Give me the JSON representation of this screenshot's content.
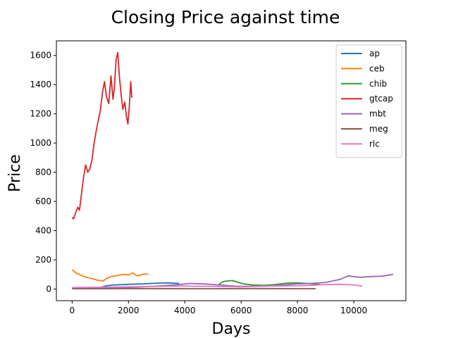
{
  "chart_data": {
    "type": "line",
    "title": "Closing Price against time",
    "xlabel": "Days",
    "ylabel": "Price",
    "xlim": [
      -560,
      11850
    ],
    "ylim": [
      -80,
      1700
    ],
    "xticks": [
      0,
      2000,
      4000,
      6000,
      8000,
      10000
    ],
    "yticks": [
      0,
      200,
      400,
      600,
      800,
      1000,
      1200,
      1400,
      1600
    ],
    "grid": false,
    "legend_position": "top-right",
    "series": [
      {
        "name": "ap",
        "color": "#1f77b4",
        "x": [
          0,
          500,
          1000,
          1200,
          1500,
          2000,
          2500,
          3000,
          3400,
          3800
        ],
        "y": [
          3,
          5,
          10,
          22,
          28,
          32,
          35,
          40,
          42,
          38
        ]
      },
      {
        "name": "ceb",
        "color": "#ff7f0e",
        "x": [
          0,
          60,
          150,
          300,
          500,
          700,
          900,
          1100,
          1250,
          1400,
          1600,
          1800,
          2000,
          2150,
          2300,
          2500,
          2700
        ],
        "y": [
          132,
          122,
          108,
          95,
          80,
          72,
          60,
          55,
          75,
          85,
          92,
          100,
          96,
          110,
          90,
          100,
          105
        ]
      },
      {
        "name": "chib",
        "color": "#2ca02c",
        "x": [
          5200,
          5350,
          5500,
          5700,
          5900,
          6100,
          6400,
          6800,
          7200,
          7600,
          8000,
          8300,
          8600,
          8800
        ],
        "y": [
          30,
          50,
          55,
          58,
          45,
          35,
          28,
          25,
          30,
          40,
          42,
          38,
          35,
          30
        ]
      },
      {
        "name": "gtcap",
        "color": "#d62728",
        "x": [
          0,
          50,
          120,
          200,
          260,
          330,
          400,
          480,
          550,
          620,
          700,
          780,
          850,
          920,
          1000,
          1080,
          1150,
          1220,
          1300,
          1380,
          1450,
          1500,
          1560,
          1620,
          1680,
          1740,
          1800,
          1870,
          1930,
          1980,
          2030,
          2080,
          2120
        ],
        "y": [
          490,
          480,
          520,
          560,
          540,
          650,
          760,
          850,
          800,
          820,
          880,
          1000,
          1080,
          1150,
          1220,
          1350,
          1420,
          1320,
          1270,
          1460,
          1300,
          1380,
          1570,
          1620,
          1450,
          1330,
          1230,
          1280,
          1180,
          1130,
          1250,
          1420,
          1310
        ]
      },
      {
        "name": "mbt",
        "color": "#9467bd",
        "x": [
          0,
          1000,
          2000,
          3000,
          3800,
          4200,
          4700,
          5200,
          5600,
          6000,
          6500,
          7000,
          7500,
          8000,
          8500,
          9000,
          9500,
          9800,
          10200,
          10600,
          11000,
          11400
        ],
        "y": [
          5,
          8,
          10,
          20,
          30,
          38,
          35,
          28,
          22,
          18,
          20,
          22,
          28,
          35,
          38,
          45,
          65,
          90,
          80,
          85,
          88,
          100
        ]
      },
      {
        "name": "meg",
        "color": "#8c564b",
        "x": [
          0,
          1000,
          2000,
          3000,
          4000,
          5000,
          6000,
          7000,
          8000,
          8650
        ],
        "y": [
          2,
          2,
          3,
          3,
          2,
          2,
          3,
          3,
          2,
          2
        ]
      },
      {
        "name": "rlc",
        "color": "#e377c2",
        "x": [
          0,
          1000,
          2000,
          3000,
          4000,
          5000,
          6000,
          7000,
          8000,
          8500,
          9000,
          9500,
          10000,
          10300
        ],
        "y": [
          10,
          12,
          15,
          18,
          20,
          18,
          15,
          20,
          22,
          25,
          30,
          32,
          28,
          20
        ]
      }
    ]
  }
}
